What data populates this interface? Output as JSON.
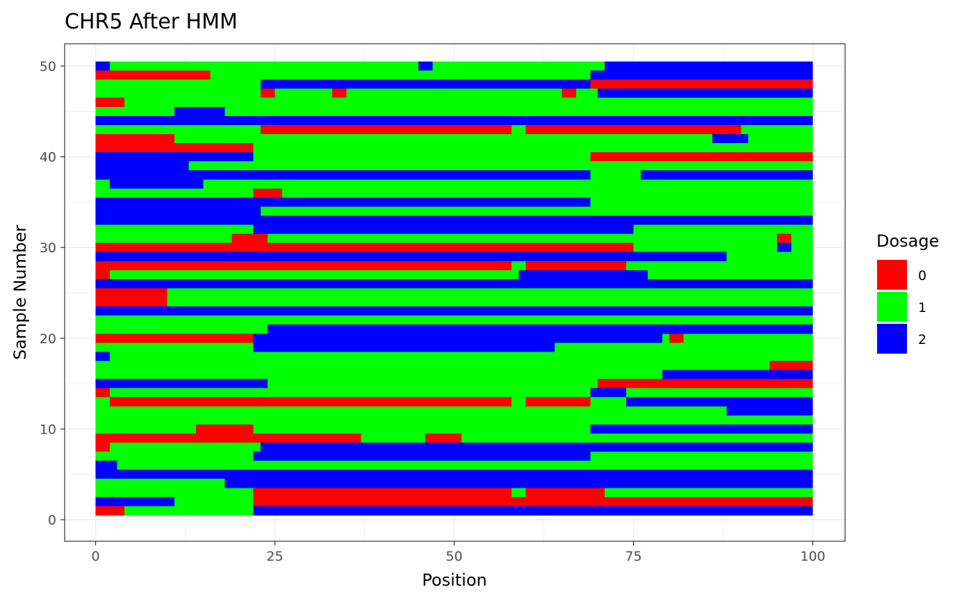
{
  "chart_data": {
    "type": "heatmap",
    "title": "CHR5 After HMM",
    "xlabel": "Position",
    "ylabel": "Sample Number",
    "xlim": [
      0,
      100
    ],
    "ylim": [
      0,
      50
    ],
    "x_ticks": [
      0,
      25,
      50,
      75,
      100
    ],
    "y_ticks": [
      0,
      10,
      20,
      30,
      40,
      50
    ],
    "grid": true,
    "legend": {
      "title": "Dosage",
      "placement": "right",
      "entries": [
        {
          "label": "0",
          "color": "#ff0000"
        },
        {
          "label": "1",
          "color": "#00ff00"
        },
        {
          "label": "2",
          "color": "#0000ff"
        }
      ]
    },
    "colors": {
      "0": "#ff0000",
      "1": "#00ff00",
      "2": "#0000ff"
    },
    "rows": [
      {
        "sample": 50,
        "segments": [
          [
            1,
            3,
            2
          ],
          [
            3,
            46,
            1
          ],
          [
            46,
            48,
            2
          ],
          [
            48,
            72,
            1
          ],
          [
            72,
            100,
            2
          ]
        ]
      },
      {
        "sample": 49,
        "segments": [
          [
            1,
            17,
            0
          ],
          [
            17,
            70,
            1
          ],
          [
            70,
            100,
            2
          ]
        ]
      },
      {
        "sample": 48,
        "segments": [
          [
            1,
            24,
            1
          ],
          [
            24,
            70,
            2
          ],
          [
            70,
            100,
            0
          ]
        ]
      },
      {
        "sample": 47,
        "segments": [
          [
            1,
            24,
            1
          ],
          [
            24,
            26,
            0
          ],
          [
            26,
            34,
            1
          ],
          [
            34,
            36,
            0
          ],
          [
            36,
            66,
            1
          ],
          [
            66,
            68,
            0
          ],
          [
            68,
            71,
            1
          ],
          [
            71,
            100,
            2
          ]
        ]
      },
      {
        "sample": 46,
        "segments": [
          [
            1,
            5,
            0
          ],
          [
            5,
            100,
            1
          ]
        ]
      },
      {
        "sample": 45,
        "segments": [
          [
            1,
            12,
            1
          ],
          [
            12,
            19,
            2
          ],
          [
            19,
            100,
            1
          ]
        ]
      },
      {
        "sample": 44,
        "segments": [
          [
            1,
            100,
            2
          ]
        ]
      },
      {
        "sample": 43,
        "segments": [
          [
            1,
            24,
            1
          ],
          [
            24,
            59,
            0
          ],
          [
            59,
            61,
            1
          ],
          [
            61,
            91,
            0
          ],
          [
            91,
            100,
            1
          ]
        ]
      },
      {
        "sample": 42,
        "segments": [
          [
            1,
            12,
            0
          ],
          [
            12,
            87,
            1
          ],
          [
            87,
            92,
            2
          ],
          [
            92,
            100,
            1
          ]
        ]
      },
      {
        "sample": 41,
        "segments": [
          [
            1,
            23,
            0
          ],
          [
            23,
            100,
            1
          ]
        ]
      },
      {
        "sample": 40,
        "segments": [
          [
            1,
            23,
            2
          ],
          [
            23,
            70,
            1
          ],
          [
            70,
            100,
            0
          ]
        ]
      },
      {
        "sample": 39,
        "segments": [
          [
            1,
            14,
            2
          ],
          [
            14,
            100,
            1
          ]
        ]
      },
      {
        "sample": 38,
        "segments": [
          [
            1,
            70,
            2
          ],
          [
            70,
            77,
            1
          ],
          [
            77,
            100,
            2
          ]
        ]
      },
      {
        "sample": 37,
        "segments": [
          [
            1,
            3,
            1
          ],
          [
            3,
            16,
            2
          ],
          [
            16,
            100,
            1
          ]
        ]
      },
      {
        "sample": 36,
        "segments": [
          [
            1,
            23,
            1
          ],
          [
            23,
            27,
            0
          ],
          [
            27,
            100,
            1
          ]
        ]
      },
      {
        "sample": 35,
        "segments": [
          [
            1,
            70,
            2
          ],
          [
            70,
            100,
            1
          ]
        ]
      },
      {
        "sample": 34,
        "segments": [
          [
            1,
            24,
            2
          ],
          [
            24,
            100,
            1
          ]
        ]
      },
      {
        "sample": 33,
        "segments": [
          [
            1,
            100,
            2
          ]
        ]
      },
      {
        "sample": 32,
        "segments": [
          [
            1,
            23,
            1
          ],
          [
            23,
            76,
            2
          ],
          [
            76,
            100,
            1
          ]
        ]
      },
      {
        "sample": 31,
        "segments": [
          [
            1,
            20,
            1
          ],
          [
            20,
            25,
            0
          ],
          [
            25,
            96,
            1
          ],
          [
            96,
            98,
            0
          ],
          [
            98,
            100,
            1
          ]
        ]
      },
      {
        "sample": 30,
        "segments": [
          [
            1,
            76,
            0
          ],
          [
            76,
            96,
            1
          ],
          [
            96,
            98,
            2
          ],
          [
            98,
            100,
            1
          ]
        ]
      },
      {
        "sample": 29,
        "segments": [
          [
            1,
            89,
            2
          ],
          [
            89,
            100,
            1
          ]
        ]
      },
      {
        "sample": 28,
        "segments": [
          [
            1,
            59,
            0
          ],
          [
            59,
            61,
            1
          ],
          [
            61,
            75,
            0
          ],
          [
            75,
            100,
            1
          ]
        ]
      },
      {
        "sample": 27,
        "segments": [
          [
            1,
            3,
            0
          ],
          [
            3,
            60,
            1
          ],
          [
            60,
            78,
            2
          ],
          [
            78,
            100,
            1
          ]
        ]
      },
      {
        "sample": 26,
        "segments": [
          [
            1,
            100,
            2
          ]
        ]
      },
      {
        "sample": 25,
        "segments": [
          [
            1,
            11,
            0
          ],
          [
            11,
            100,
            1
          ]
        ]
      },
      {
        "sample": 24,
        "segments": [
          [
            1,
            11,
            0
          ],
          [
            11,
            100,
            1
          ]
        ]
      },
      {
        "sample": 23,
        "segments": [
          [
            1,
            100,
            2
          ]
        ]
      },
      {
        "sample": 22,
        "segments": [
          [
            1,
            100,
            1
          ]
        ]
      },
      {
        "sample": 21,
        "segments": [
          [
            1,
            25,
            1
          ],
          [
            25,
            100,
            2
          ]
        ]
      },
      {
        "sample": 20,
        "segments": [
          [
            1,
            23,
            0
          ],
          [
            23,
            80,
            2
          ],
          [
            80,
            81,
            1
          ],
          [
            81,
            83,
            0
          ],
          [
            83,
            100,
            1
          ]
        ]
      },
      {
        "sample": 19,
        "segments": [
          [
            1,
            23,
            1
          ],
          [
            23,
            65,
            2
          ],
          [
            65,
            100,
            1
          ]
        ]
      },
      {
        "sample": 18,
        "segments": [
          [
            1,
            3,
            2
          ],
          [
            3,
            100,
            1
          ]
        ]
      },
      {
        "sample": 17,
        "segments": [
          [
            1,
            95,
            1
          ],
          [
            95,
            100,
            0
          ]
        ]
      },
      {
        "sample": 16,
        "segments": [
          [
            1,
            80,
            1
          ],
          [
            80,
            100,
            2
          ]
        ]
      },
      {
        "sample": 15,
        "segments": [
          [
            1,
            25,
            2
          ],
          [
            25,
            71,
            1
          ],
          [
            71,
            100,
            0
          ]
        ]
      },
      {
        "sample": 14,
        "segments": [
          [
            1,
            3,
            0
          ],
          [
            3,
            70,
            1
          ],
          [
            70,
            75,
            2
          ],
          [
            75,
            100,
            1
          ]
        ]
      },
      {
        "sample": 13,
        "segments": [
          [
            1,
            3,
            1
          ],
          [
            3,
            59,
            0
          ],
          [
            59,
            61,
            1
          ],
          [
            61,
            70,
            0
          ],
          [
            70,
            75,
            1
          ],
          [
            75,
            100,
            2
          ]
        ]
      },
      {
        "sample": 12,
        "segments": [
          [
            1,
            89,
            1
          ],
          [
            89,
            100,
            2
          ]
        ]
      },
      {
        "sample": 11,
        "segments": [
          [
            1,
            100,
            1
          ]
        ]
      },
      {
        "sample": 10,
        "segments": [
          [
            1,
            15,
            1
          ],
          [
            15,
            23,
            0
          ],
          [
            23,
            70,
            1
          ],
          [
            70,
            100,
            2
          ]
        ]
      },
      {
        "sample": 9,
        "segments": [
          [
            1,
            38,
            0
          ],
          [
            38,
            47,
            1
          ],
          [
            47,
            52,
            0
          ],
          [
            52,
            100,
            1
          ]
        ]
      },
      {
        "sample": 8,
        "segments": [
          [
            1,
            3,
            0
          ],
          [
            3,
            24,
            1
          ],
          [
            24,
            100,
            2
          ]
        ]
      },
      {
        "sample": 7,
        "segments": [
          [
            1,
            2,
            1
          ],
          [
            2,
            23,
            1
          ],
          [
            23,
            70,
            2
          ],
          [
            70,
            100,
            1
          ]
        ]
      },
      {
        "sample": 6,
        "segments": [
          [
            1,
            4,
            2
          ],
          [
            4,
            100,
            1
          ]
        ]
      },
      {
        "sample": 5,
        "segments": [
          [
            1,
            100,
            2
          ]
        ]
      },
      {
        "sample": 4,
        "segments": [
          [
            1,
            19,
            1
          ],
          [
            19,
            100,
            2
          ]
        ]
      },
      {
        "sample": 3,
        "segments": [
          [
            1,
            23,
            1
          ],
          [
            23,
            59,
            0
          ],
          [
            59,
            61,
            1
          ],
          [
            61,
            72,
            0
          ],
          [
            72,
            100,
            1
          ]
        ]
      },
      {
        "sample": 2,
        "segments": [
          [
            1,
            12,
            2
          ],
          [
            12,
            23,
            1
          ],
          [
            23,
            100,
            0
          ]
        ]
      },
      {
        "sample": 1,
        "segments": [
          [
            1,
            5,
            0
          ],
          [
            5,
            23,
            1
          ],
          [
            23,
            100,
            2
          ]
        ]
      }
    ]
  }
}
